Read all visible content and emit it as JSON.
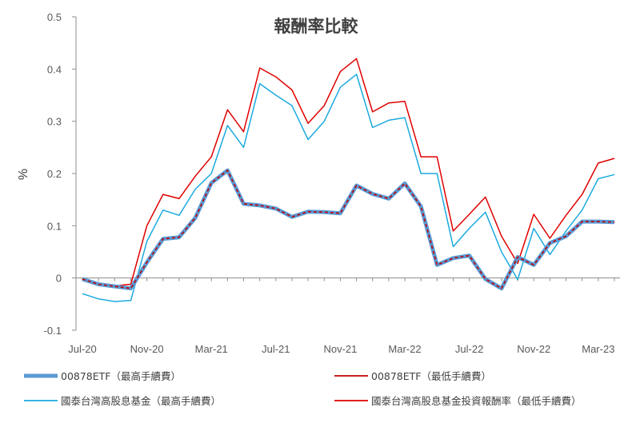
{
  "chart_data": {
    "type": "line",
    "title": "報酬率比較",
    "ylabel": "%",
    "xlabel": "",
    "ylim": [
      -0.1,
      0.5
    ],
    "yticks": [
      "-0.1",
      "0",
      "0.1",
      "0.2",
      "0.3",
      "0.4",
      "0.5"
    ],
    "xtick_labels": [
      "Jul-20",
      "Nov-20",
      "Mar-21",
      "Jul-21",
      "Nov-21",
      "Mar-22",
      "Jul-22",
      "Nov-22",
      "Mar-23"
    ],
    "grid": false,
    "legend_position": "bottom",
    "x": [
      "2020-07",
      "2020-08",
      "2020-09",
      "2020-10",
      "2020-11",
      "2020-12",
      "2021-01",
      "2021-02",
      "2021-03",
      "2021-04",
      "2021-05",
      "2021-06",
      "2021-07",
      "2021-08",
      "2021-09",
      "2021-10",
      "2021-11",
      "2021-12",
      "2022-01",
      "2022-02",
      "2022-03",
      "2022-04",
      "2022-05",
      "2022-06",
      "2022-07",
      "2022-08",
      "2022-09",
      "2022-10",
      "2022-11",
      "2022-12",
      "2023-01",
      "2023-02",
      "2023-03",
      "2023-04"
    ],
    "series": [
      {
        "name": "00878ETF（最高手續費）",
        "color": "#5B9BD5",
        "style": "thick",
        "values": [
          -0.002,
          -0.012,
          -0.016,
          -0.02,
          0.03,
          0.075,
          0.078,
          0.115,
          0.182,
          0.206,
          0.142,
          0.139,
          0.133,
          0.117,
          0.127,
          0.126,
          0.124,
          0.177,
          0.161,
          0.152,
          0.181,
          0.137,
          0.025,
          0.038,
          0.043,
          -0.002,
          -0.02,
          0.04,
          0.025,
          0.067,
          0.08,
          0.108,
          0.108,
          0.107
        ]
      },
      {
        "name": "00878ETF（最低手續費）",
        "color": "#C00000",
        "style": "dashed",
        "values": [
          -0.002,
          -0.012,
          -0.016,
          -0.02,
          0.03,
          0.075,
          0.078,
          0.115,
          0.182,
          0.206,
          0.142,
          0.139,
          0.133,
          0.117,
          0.127,
          0.126,
          0.124,
          0.177,
          0.161,
          0.152,
          0.181,
          0.137,
          0.025,
          0.038,
          0.043,
          -0.002,
          -0.02,
          0.04,
          0.025,
          0.067,
          0.08,
          0.108,
          0.108,
          0.107
        ]
      },
      {
        "name": "國泰台灣高股息基金（最高手續費）",
        "color": "#1CAADF",
        "style": "thin",
        "values": [
          -0.03,
          -0.04,
          -0.045,
          -0.043,
          0.07,
          0.13,
          0.12,
          0.17,
          0.2,
          0.292,
          0.25,
          0.372,
          0.35,
          0.33,
          0.265,
          0.3,
          0.365,
          0.39,
          0.288,
          0.302,
          0.307,
          0.2,
          0.2,
          0.06,
          0.095,
          0.126,
          0.05,
          -0.003,
          0.095,
          0.045,
          0.09,
          0.13,
          0.19,
          0.198
        ]
      },
      {
        "name": "國泰台灣高股息基金投資報酬率（最低手續費）",
        "color": "#E00000",
        "style": "thin",
        "values": [
          -0.002,
          -0.01,
          -0.015,
          -0.012,
          0.1,
          0.16,
          0.152,
          0.195,
          0.232,
          0.322,
          0.28,
          0.402,
          0.385,
          0.36,
          0.296,
          0.33,
          0.395,
          0.42,
          0.318,
          0.335,
          0.338,
          0.232,
          0.232,
          0.09,
          0.122,
          0.155,
          0.08,
          0.028,
          0.122,
          0.076,
          0.12,
          0.16,
          0.22,
          0.229
        ]
      }
    ]
  }
}
